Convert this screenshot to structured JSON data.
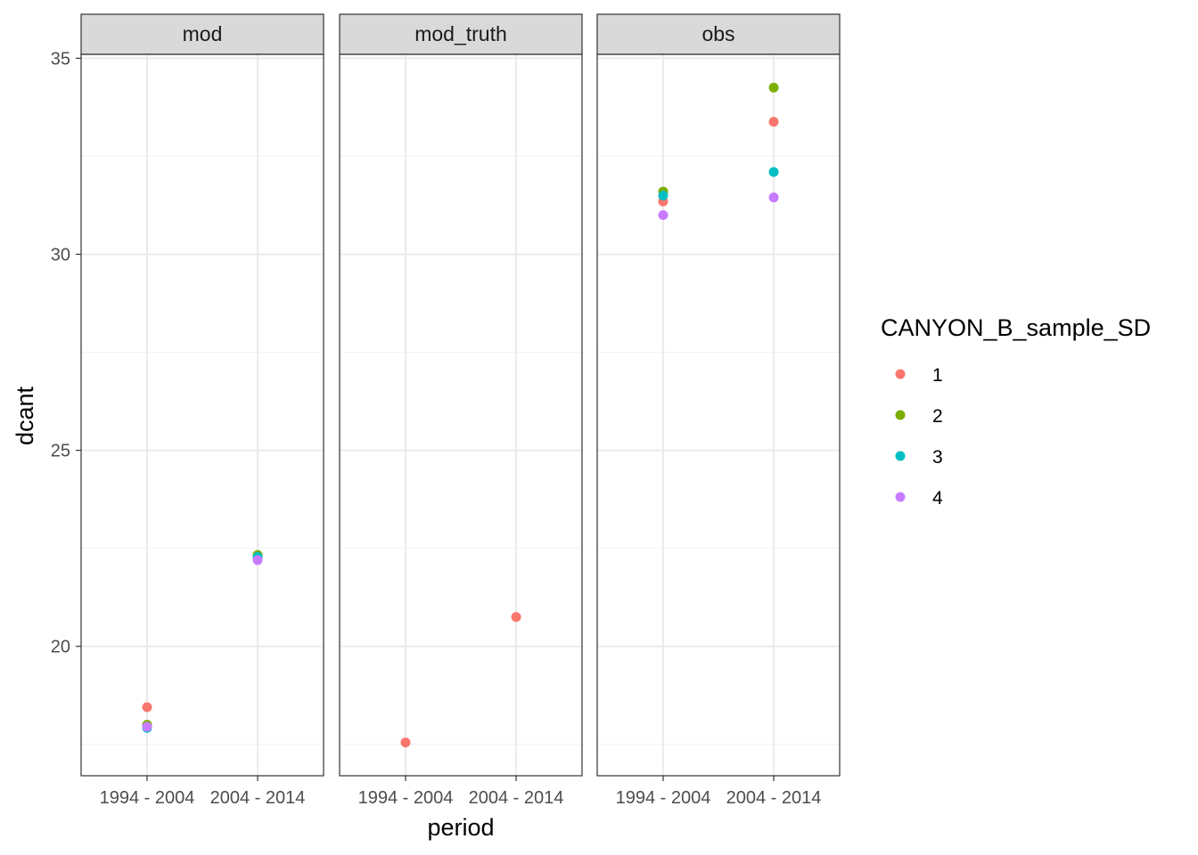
{
  "chart_data": {
    "type": "scatter",
    "facet_variable": "panel",
    "panels": [
      "mod",
      "mod_truth",
      "obs"
    ],
    "categories": [
      "1994 - 2004",
      "2004 - 2014"
    ],
    "xlabel": "period",
    "ylabel": "dcant",
    "ylim": [
      16.7,
      35.1
    ],
    "y_ticks": [
      20,
      25,
      30,
      35
    ],
    "grid": true,
    "legend": {
      "title": "CANYON_B_sample_SD",
      "position": "right",
      "entries": [
        {
          "label": "1",
          "color": "#F8766D"
        },
        {
          "label": "2",
          "color": "#7CAE00"
        },
        {
          "label": "3",
          "color": "#00BFC4"
        },
        {
          "label": "4",
          "color": "#C77CFF"
        }
      ]
    },
    "series": [
      {
        "name": "1",
        "color": "#F8766D",
        "points": [
          {
            "panel": "mod",
            "x": "1994 - 2004",
            "y": 18.45
          },
          {
            "panel": "mod",
            "x": "2004 - 2014",
            "y": 22.25
          },
          {
            "panel": "mod_truth",
            "x": "1994 - 2004",
            "y": 17.55
          },
          {
            "panel": "mod_truth",
            "x": "2004 - 2014",
            "y": 20.75
          },
          {
            "panel": "obs",
            "x": "1994 - 2004",
            "y": 31.35
          },
          {
            "panel": "obs",
            "x": "2004 - 2014",
            "y": 33.38
          }
        ]
      },
      {
        "name": "2",
        "color": "#7CAE00",
        "points": [
          {
            "panel": "mod",
            "x": "1994 - 2004",
            "y": 18.0
          },
          {
            "panel": "mod",
            "x": "2004 - 2014",
            "y": 22.33
          },
          {
            "panel": "obs",
            "x": "1994 - 2004",
            "y": 31.6
          },
          {
            "panel": "obs",
            "x": "2004 - 2014",
            "y": 34.25
          }
        ]
      },
      {
        "name": "3",
        "color": "#00BFC4",
        "points": [
          {
            "panel": "mod",
            "x": "1994 - 2004",
            "y": 17.92
          },
          {
            "panel": "mod",
            "x": "2004 - 2014",
            "y": 22.28
          },
          {
            "panel": "obs",
            "x": "1994 - 2004",
            "y": 31.5
          },
          {
            "panel": "obs",
            "x": "2004 - 2014",
            "y": 32.1
          }
        ]
      },
      {
        "name": "4",
        "color": "#C77CFF",
        "points": [
          {
            "panel": "mod",
            "x": "1994 - 2004",
            "y": 17.95
          },
          {
            "panel": "mod",
            "x": "2004 - 2014",
            "y": 22.2
          },
          {
            "panel": "obs",
            "x": "1994 - 2004",
            "y": 31.0
          },
          {
            "panel": "obs",
            "x": "2004 - 2014",
            "y": 31.45
          }
        ]
      }
    ]
  }
}
